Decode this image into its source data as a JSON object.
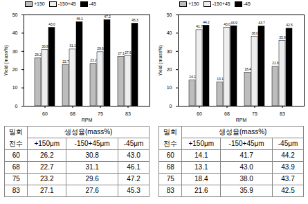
{
  "chart_data": [
    {
      "type": "bar",
      "xlabel": "RPM",
      "ylabel": "Yield (mass%)",
      "categories": [
        60,
        68,
        75,
        83
      ],
      "series": [
        {
          "name": "+150",
          "color": "#bdbdbd",
          "values": [
            26.2,
            22.7,
            23.2,
            27.1
          ],
          "value_labels": [
            "26.2",
            "22.7",
            "23.2",
            "27.1"
          ]
        },
        {
          "name": "-150+45",
          "color": "#eeeeee",
          "values": [
            30.8,
            31.1,
            29.6,
            27.6
          ],
          "value_labels": [
            "30.8",
            "31.1",
            "29.6",
            "27.6"
          ]
        },
        {
          "name": "-45",
          "color": "#000000",
          "values": [
            43.0,
            46.1,
            47.2,
            45.3
          ],
          "value_labels": [
            "43.0",
            "46.1",
            "47.2",
            "45.3"
          ]
        }
      ],
      "ylim": [
        0,
        50
      ],
      "yticks": [
        0,
        10,
        20,
        30,
        40,
        50
      ],
      "data_labels": true,
      "legend": "top-left"
    },
    {
      "type": "bar",
      "xlabel": "RPM",
      "ylabel": "Yield (mass%)",
      "categories": [
        60,
        68,
        75,
        83
      ],
      "series": [
        {
          "name": "+150",
          "color": "#bdbdbd",
          "values": [
            14.1,
            13.1,
            18.4,
            21.6
          ],
          "value_labels": [
            "14.1",
            "13.1",
            "18.4",
            "21.6"
          ]
        },
        {
          "name": "-150+45",
          "color": "#eeeeee",
          "values": [
            41.7,
            43.0,
            38.0,
            35.9
          ],
          "value_labels": [
            "41.7",
            "43.0",
            "38.0",
            "35.9"
          ]
        },
        {
          "name": "-45",
          "color": "#000000",
          "values": [
            44.2,
            43.9,
            43.7,
            42.5
          ],
          "value_labels": [
            "44.2",
            "43.9",
            "43.7",
            "42.5"
          ]
        }
      ],
      "ylim": [
        0,
        50
      ],
      "yticks": [
        0,
        10,
        20,
        30,
        40,
        50
      ],
      "data_labels": true,
      "legend": "top-left"
    }
  ],
  "tables": [
    {
      "header": [
        "밀회",
        "생성율(mass%)"
      ],
      "subheader": [
        "전수",
        "+150μm",
        "-150+45μm",
        "-45μm"
      ],
      "rows": [
        [
          "60",
          "26.2",
          "30.8",
          "43.0"
        ],
        [
          "68",
          "22.7",
          "31.1",
          "46.1"
        ],
        [
          "75",
          "23.2",
          "29.6",
          "47.2"
        ],
        [
          "83",
          "27.1",
          "27.6",
          "45.3"
        ]
      ]
    },
    {
      "header": [
        "밀회",
        "생성율(mass%)"
      ],
      "subheader": [
        "전수",
        "+150μm",
        "-150+45μm",
        "-45μm"
      ],
      "rows": [
        [
          "60",
          "14.1",
          "41.7",
          "44.2"
        ],
        [
          "68",
          "13.1",
          "43.0",
          "43.9"
        ],
        [
          "75",
          "18.4",
          "38.0",
          "43.7"
        ],
        [
          "83",
          "21.6",
          "35.9",
          "42.5"
        ]
      ]
    }
  ]
}
